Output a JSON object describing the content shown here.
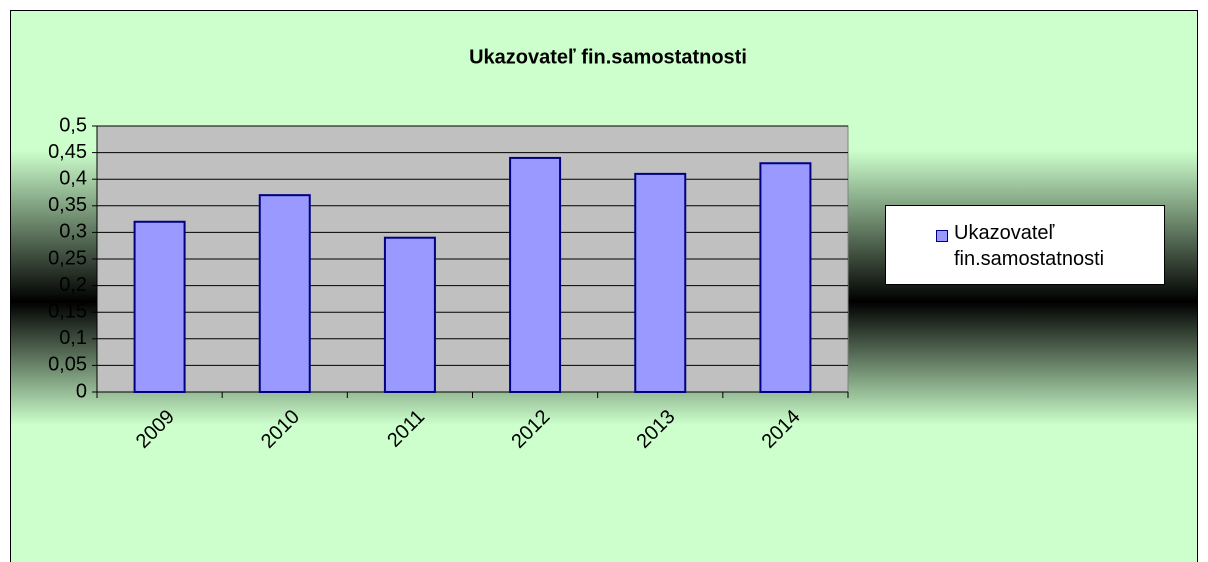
{
  "chart_data": {
    "type": "bar",
    "title": "Ukazovateľ fin.samostatnosti",
    "categories": [
      "2009",
      "2010",
      "2011",
      "2012",
      "2013",
      "2014"
    ],
    "series": [
      {
        "name": "Ukazovateľ fin.samostatnosti",
        "color": "#9999ff",
        "values": [
          0.32,
          0.37,
          0.29,
          0.44,
          0.41,
          0.43
        ]
      }
    ],
    "ylim": [
      0,
      0.5
    ],
    "yticks": [
      0,
      {
        "value": 0.05,
        "label": "0,05"
      },
      {
        "value": 0.1,
        "label": "0,1"
      },
      {
        "value": 0.15,
        "label": "0,15"
      },
      {
        "value": 0.2,
        "label": "0,2"
      },
      {
        "value": 0.25,
        "label": "0,25"
      },
      {
        "value": 0.3,
        "label": "0,3"
      },
      {
        "value": 0.35,
        "label": "0,35"
      },
      {
        "value": 0.4,
        "label": "0,4"
      },
      {
        "value": 0.45,
        "label": "0,45"
      },
      {
        "value": 0.5,
        "label": "0,5"
      }
    ],
    "grid": true,
    "legend": "right"
  }
}
